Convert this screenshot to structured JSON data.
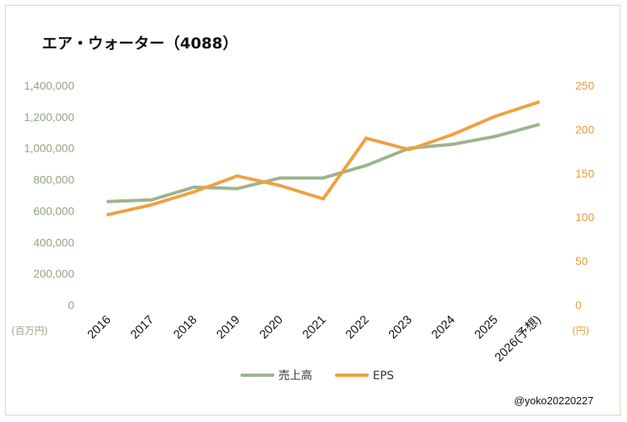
{
  "chart_data": {
    "type": "line",
    "title": "エア・ウォーター（4088）",
    "categories": [
      "2016",
      "2017",
      "2018",
      "2019",
      "2020",
      "2021",
      "2022",
      "2023",
      "2024",
      "2025",
      "2026(予想)"
    ],
    "series": [
      {
        "name": "売上高",
        "axis": "left",
        "color": "#9db48d",
        "values": [
          660000,
          670000,
          752000,
          742000,
          810000,
          810000,
          890000,
          1000000,
          1025000,
          1075000,
          1150000
        ]
      },
      {
        "name": "EPS",
        "axis": "right",
        "color": "#f0a040",
        "values": [
          103,
          114,
          129,
          147,
          136,
          121,
          190,
          177,
          194,
          215,
          231
        ]
      }
    ],
    "y_left": {
      "ticks": [
        "0",
        "200,000",
        "400,000",
        "600,000",
        "800,000",
        "1,000,000",
        "1,200,000",
        "1,400,000"
      ],
      "ylim": [
        0,
        1400000
      ],
      "unit": "(百万円)"
    },
    "y_right": {
      "ticks": [
        "0",
        "50",
        "100",
        "150",
        "200",
        "250"
      ],
      "ylim": [
        0,
        250
      ],
      "unit": "(円)"
    },
    "grid": false,
    "legend_position": "bottom",
    "credit": "@yoko20220227"
  }
}
